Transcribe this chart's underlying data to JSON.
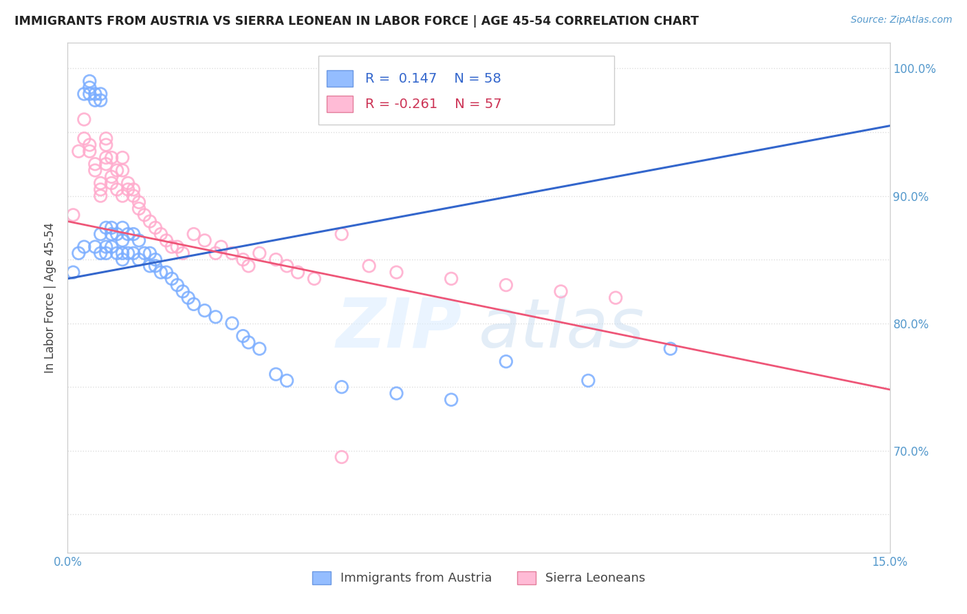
{
  "title": "IMMIGRANTS FROM AUSTRIA VS SIERRA LEONEAN IN LABOR FORCE | AGE 45-54 CORRELATION CHART",
  "source": "Source: ZipAtlas.com",
  "ylabel": "In Labor Force | Age 45-54",
  "xlim": [
    0.0,
    0.15
  ],
  "ylim": [
    0.62,
    1.02
  ],
  "austria_color": "#7aadff",
  "austria_edge_color": "#5588dd",
  "sierra_color": "#ffaacc",
  "sierra_edge_color": "#dd6688",
  "austria_R": 0.147,
  "austria_N": 58,
  "sierra_R": -0.261,
  "sierra_N": 57,
  "legend_austria_label": "Immigrants from Austria",
  "legend_sierra_label": "Sierra Leoneans",
  "austria_line_color": "#3366cc",
  "sierra_line_color": "#ee5577",
  "grid_color": "#dddddd",
  "background_color": "#ffffff",
  "austria_x": [
    0.001,
    0.002,
    0.003,
    0.003,
    0.004,
    0.004,
    0.004,
    0.005,
    0.005,
    0.005,
    0.006,
    0.006,
    0.006,
    0.006,
    0.007,
    0.007,
    0.007,
    0.008,
    0.008,
    0.008,
    0.009,
    0.009,
    0.01,
    0.01,
    0.01,
    0.01,
    0.011,
    0.011,
    0.012,
    0.012,
    0.013,
    0.013,
    0.014,
    0.015,
    0.015,
    0.016,
    0.016,
    0.017,
    0.018,
    0.019,
    0.02,
    0.021,
    0.022,
    0.023,
    0.025,
    0.027,
    0.03,
    0.032,
    0.033,
    0.035,
    0.038,
    0.04,
    0.05,
    0.06,
    0.07,
    0.08,
    0.095,
    0.11
  ],
  "austria_y": [
    0.84,
    0.855,
    0.86,
    0.98,
    0.99,
    0.985,
    0.98,
    0.975,
    0.98,
    0.86,
    0.98,
    0.975,
    0.87,
    0.855,
    0.875,
    0.86,
    0.855,
    0.875,
    0.87,
    0.86,
    0.87,
    0.855,
    0.875,
    0.865,
    0.855,
    0.85,
    0.87,
    0.855,
    0.87,
    0.855,
    0.865,
    0.85,
    0.855,
    0.855,
    0.845,
    0.85,
    0.845,
    0.84,
    0.84,
    0.835,
    0.83,
    0.825,
    0.82,
    0.815,
    0.81,
    0.805,
    0.8,
    0.79,
    0.785,
    0.78,
    0.76,
    0.755,
    0.75,
    0.745,
    0.74,
    0.77,
    0.755,
    0.78
  ],
  "sierra_x": [
    0.001,
    0.002,
    0.003,
    0.003,
    0.004,
    0.004,
    0.005,
    0.005,
    0.006,
    0.006,
    0.006,
    0.007,
    0.007,
    0.007,
    0.007,
    0.008,
    0.008,
    0.008,
    0.009,
    0.009,
    0.01,
    0.01,
    0.01,
    0.011,
    0.011,
    0.012,
    0.012,
    0.013,
    0.013,
    0.014,
    0.015,
    0.016,
    0.017,
    0.018,
    0.019,
    0.02,
    0.021,
    0.023,
    0.025,
    0.027,
    0.028,
    0.03,
    0.032,
    0.033,
    0.035,
    0.038,
    0.04,
    0.042,
    0.045,
    0.05,
    0.055,
    0.06,
    0.07,
    0.08,
    0.09,
    0.1,
    0.05
  ],
  "sierra_y": [
    0.885,
    0.935,
    0.96,
    0.945,
    0.94,
    0.935,
    0.925,
    0.92,
    0.91,
    0.905,
    0.9,
    0.945,
    0.94,
    0.93,
    0.925,
    0.93,
    0.915,
    0.91,
    0.92,
    0.905,
    0.9,
    0.93,
    0.92,
    0.91,
    0.905,
    0.905,
    0.9,
    0.895,
    0.89,
    0.885,
    0.88,
    0.875,
    0.87,
    0.865,
    0.86,
    0.86,
    0.855,
    0.87,
    0.865,
    0.855,
    0.86,
    0.855,
    0.85,
    0.845,
    0.855,
    0.85,
    0.845,
    0.84,
    0.835,
    0.87,
    0.845,
    0.84,
    0.835,
    0.83,
    0.825,
    0.82,
    0.695
  ],
  "austria_line_x": [
    0.0,
    0.15
  ],
  "austria_line_y": [
    0.835,
    0.955
  ],
  "sierra_line_x": [
    0.0,
    0.15
  ],
  "sierra_line_y": [
    0.88,
    0.748
  ]
}
